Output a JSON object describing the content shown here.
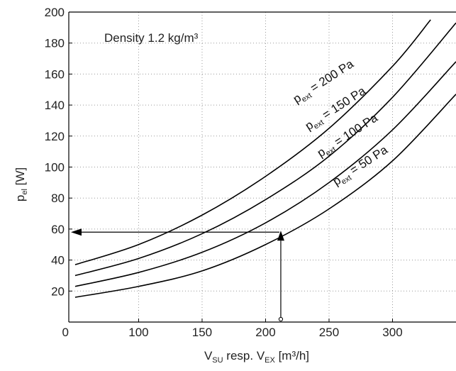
{
  "chart_data": {
    "type": "line",
    "title": "",
    "annotation": "Density 1.2 kg/m³",
    "xlabel": {
      "main": "V",
      "sub1": "SU",
      "mid": " resp. V",
      "sub2": "EX",
      "unit": " [m³/h]"
    },
    "ylabel": {
      "main": "p",
      "sub": "el",
      "unit": " [W]"
    },
    "xlim": [
      45,
      350
    ],
    "ylim": [
      0,
      200
    ],
    "xticks": [
      0,
      100,
      150,
      200,
      250,
      300
    ],
    "yticks": [
      20,
      40,
      60,
      80,
      100,
      120,
      140,
      160,
      180,
      200
    ],
    "grid": "dotted",
    "series": [
      {
        "name": "p_ext = 50 Pa",
        "label_main": "p",
        "label_sub": "ext",
        "label_rest": " = 50 Pa",
        "x": [
          50,
          100,
          150,
          200,
          250,
          300,
          350
        ],
        "y": [
          16,
          23,
          33,
          50,
          73,
          104,
          147
        ]
      },
      {
        "name": "p_ext = 100 Pa",
        "label_main": "p",
        "label_sub": "ext",
        "label_rest": " = 100 Pa",
        "x": [
          50,
          100,
          150,
          200,
          250,
          300,
          350
        ],
        "y": [
          23,
          32,
          45,
          64,
          90,
          124,
          168
        ]
      },
      {
        "name": "p_ext = 150 Pa",
        "label_main": "p",
        "label_sub": "ext",
        "label_rest": " = 150 Pa",
        "x": [
          50,
          100,
          150,
          200,
          250,
          300,
          350
        ],
        "y": [
          30,
          41,
          57,
          79,
          107,
          145,
          193
        ]
      },
      {
        "name": "p_ext = 200 Pa",
        "label_main": "p",
        "label_sub": "ext",
        "label_rest": " = 200 Pa",
        "x": [
          50,
          100,
          150,
          200,
          250,
          300,
          330
        ],
        "y": [
          37,
          50,
          69,
          94,
          125,
          165,
          195
        ]
      }
    ],
    "example_reading": {
      "x": 212,
      "y": 58
    }
  }
}
